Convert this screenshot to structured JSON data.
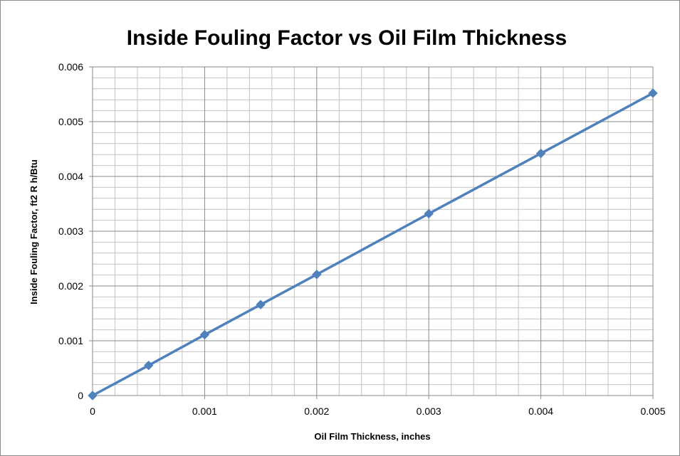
{
  "chart_data": {
    "type": "line",
    "title": "Inside Fouling Factor vs Oil Film Thickness",
    "xlabel": "Oil Film Thickness, inches",
    "ylabel": "Inside Fouling Factor, ft2 R h/Btu",
    "xlim": [
      0,
      0.005
    ],
    "ylim": [
      0,
      0.006
    ],
    "x_ticks": [
      "0",
      "0.001",
      "0.002",
      "0.003",
      "0.004",
      "0.005"
    ],
    "y_ticks": [
      "0",
      "0.001",
      "0.002",
      "0.003",
      "0.004",
      "0.005",
      "0.006"
    ],
    "grid": true,
    "legend": "none",
    "series": [
      {
        "color": "#4f81bd",
        "marker": "diamond",
        "x": [
          0,
          0.0005,
          0.001,
          0.0015,
          0.002,
          0.003,
          0.004,
          0.005
        ],
        "y": [
          0,
          0.00055,
          0.00111,
          0.00166,
          0.00221,
          0.00332,
          0.00442,
          0.00552
        ]
      }
    ]
  }
}
